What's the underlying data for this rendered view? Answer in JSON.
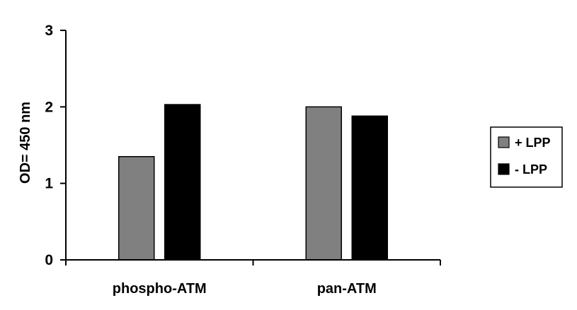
{
  "chart_data": {
    "type": "bar",
    "categories": [
      "phospho-ATM",
      "pan-ATM"
    ],
    "series": [
      {
        "name": "+ LPP",
        "values": [
          1.35,
          2.0
        ],
        "color": "#808080"
      },
      {
        "name": "- LPP",
        "values": [
          2.03,
          1.88
        ],
        "color": "#000000"
      }
    ],
    "xlabel": "",
    "ylabel": "OD= 450 nm",
    "ylim": [
      0,
      3
    ],
    "yticks": [
      0,
      1,
      2,
      3
    ],
    "grid": false,
    "legend_position": "right"
  }
}
